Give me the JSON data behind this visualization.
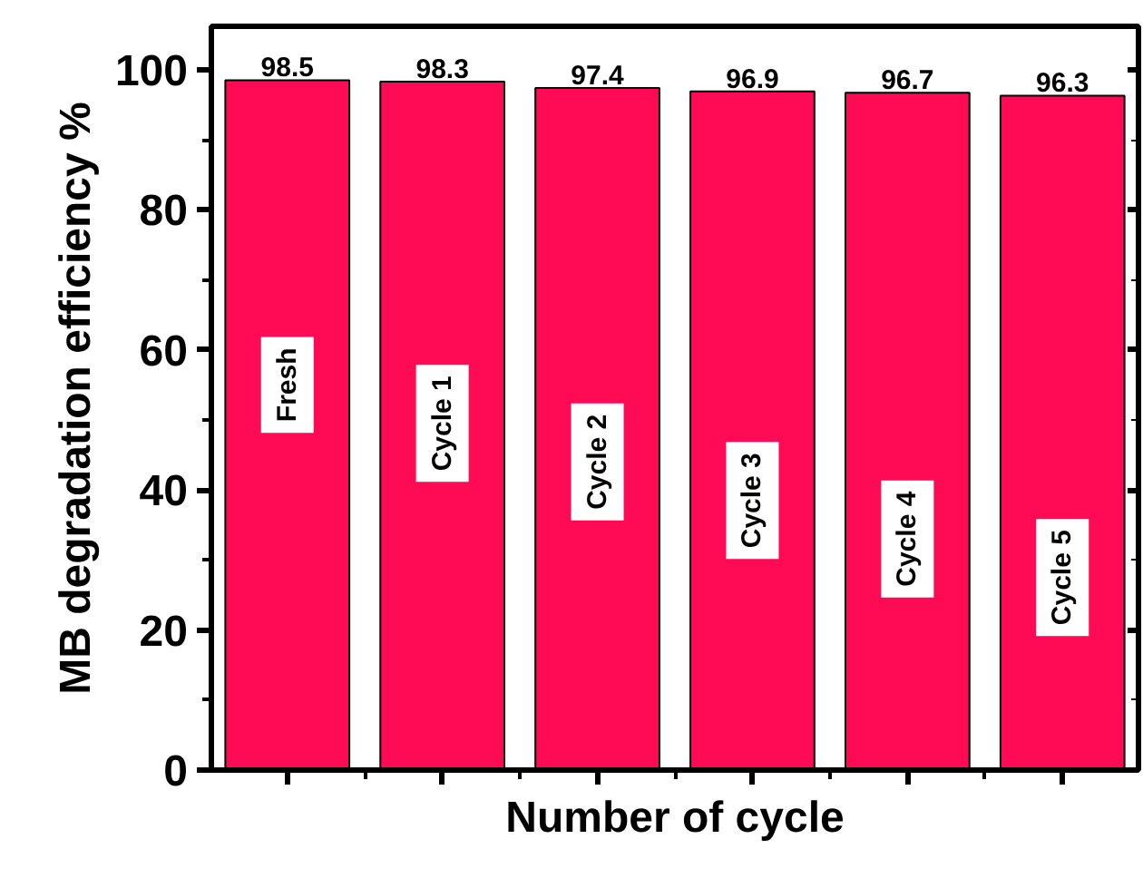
{
  "chart_data": {
    "type": "bar",
    "xlabel": "Number of cycle",
    "ylabel": "MB degradation efficiency %",
    "categories": [
      "Fresh",
      "Cycle 1",
      "Cycle 2",
      "Cycle 3",
      "Cycle 4",
      "Cycle 5"
    ],
    "values": [
      98.5,
      98.3,
      97.4,
      96.9,
      96.7,
      96.3
    ],
    "color": "#ff0a55",
    "ylim": [
      0,
      106.2
    ],
    "yticks": [
      0,
      20,
      40,
      60,
      80,
      100
    ],
    "data_labels": true,
    "grid": false,
    "tick_labels": "y"
  }
}
